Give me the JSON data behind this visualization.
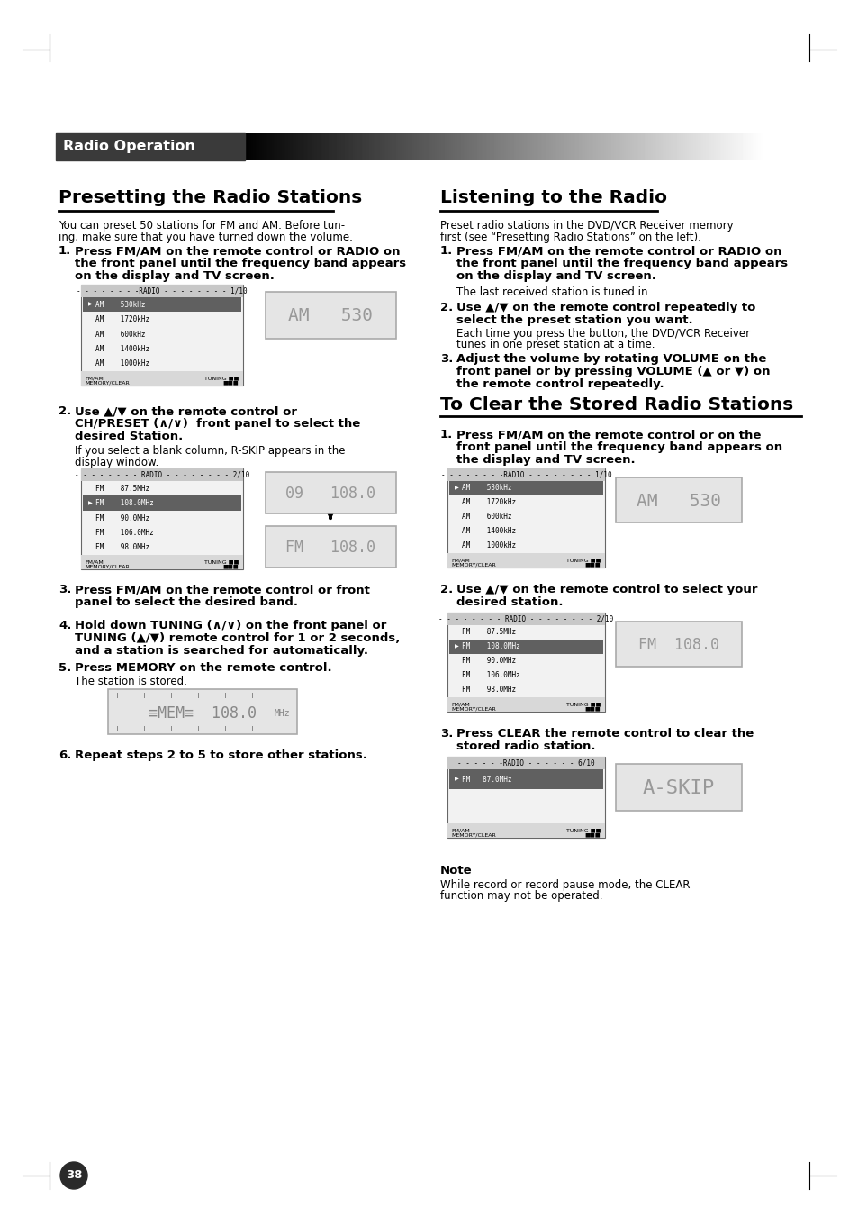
{
  "page_bg": "#ffffff",
  "header_text": "Radio Operation",
  "page_number": "38",
  "left_title": "Presetting the Radio Stations",
  "right_title": "Listening to the Radio",
  "clear_title": "To Clear the Stored Radio Stations",
  "note_title": "Note",
  "note_text": "While record or record pause mode, the CLEAR\nfunction may not be operated."
}
